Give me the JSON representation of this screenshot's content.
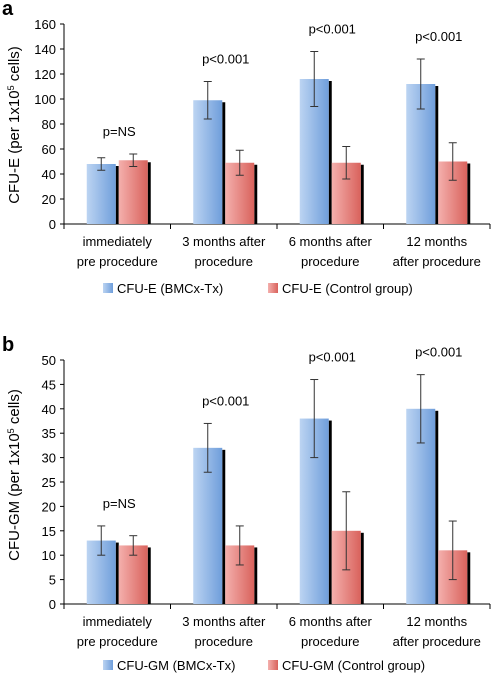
{
  "chart_data": [
    {
      "panel": "a",
      "type": "bar",
      "ylabel": "CFU-E (per 1x10^5 cells)",
      "ylabel_main": "CFU-E (per 1x10",
      "ylabel_sup": "5",
      "ylabel_end": " cells)",
      "ylim": [
        0,
        160
      ],
      "yticks": [
        0,
        20,
        40,
        60,
        80,
        100,
        120,
        140,
        160
      ],
      "categories": [
        [
          "immediately",
          "pre procedure"
        ],
        [
          "3 months after",
          "procedure"
        ],
        [
          "6 months after",
          "procedure"
        ],
        [
          "12 months",
          "after procedure"
        ]
      ],
      "series": [
        {
          "name": "CFU-E (BMCx-Tx)",
          "values": [
            48,
            99,
            116,
            112
          ],
          "errors": [
            5,
            15,
            22,
            20
          ]
        },
        {
          "name": "CFU-E (Control group)",
          "values": [
            51,
            49,
            49,
            50
          ],
          "errors": [
            5,
            10,
            13,
            15
          ]
        }
      ],
      "annotations": [
        "p=NS",
        "p<0.001",
        "p<0.001",
        "p<0.001"
      ],
      "legend_position": "bottom",
      "grid": false
    },
    {
      "panel": "b",
      "type": "bar",
      "ylabel": "CFU-GM (per 1x10^5 cells)",
      "ylabel_main": "CFU-GM (per 1x10",
      "ylabel_sup": "5",
      "ylabel_end": " cells)",
      "ylim": [
        0,
        50
      ],
      "yticks": [
        0,
        5,
        10,
        15,
        20,
        25,
        30,
        35,
        40,
        45,
        50
      ],
      "categories": [
        [
          "immediately",
          "pre procedure"
        ],
        [
          "3 months after",
          "procedure"
        ],
        [
          "6 months after",
          "procedure"
        ],
        [
          "12 months",
          "after procedure"
        ]
      ],
      "series": [
        {
          "name": "CFU-GM (BMCx-Tx)",
          "values": [
            13,
            32,
            38,
            40
          ],
          "errors": [
            3,
            5,
            8,
            7
          ]
        },
        {
          "name": "CFU-GM (Control group)",
          "values": [
            12,
            12,
            15,
            11
          ],
          "errors": [
            2,
            4,
            8,
            6
          ]
        }
      ],
      "annotations": [
        "p=NS",
        "p<0.001",
        "p<0.001",
        "p<0.001"
      ],
      "legend_position": "bottom",
      "grid": false
    }
  ],
  "colors": {
    "bmc_fill_light": "#bcd4f2",
    "bmc_fill_dark": "#6f9edb",
    "ctrl_fill_light": "#f4b0ad",
    "ctrl_fill_dark": "#d9625c",
    "bar_shadow": "#000000",
    "axis": "#000000"
  }
}
